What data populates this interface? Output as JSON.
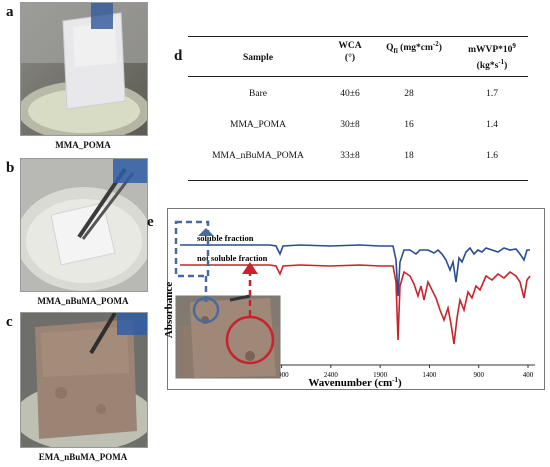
{
  "panels": {
    "a": {
      "letter": "a",
      "caption": "MMA_POMA"
    },
    "b": {
      "letter": "b",
      "caption": "MMA_nBuMA_POMA"
    },
    "c": {
      "letter": "c",
      "caption": "EMA_nBuMA_POMA"
    },
    "d": {
      "letter": "d"
    },
    "e": {
      "letter": "e"
    }
  },
  "table": {
    "headers": {
      "sample": "Sample",
      "wca": "WCA",
      "wca_unit": "(°)",
      "qfi": "Q",
      "qfi_sub": "fi",
      "qfi_unit": " (mg*cm",
      "qfi_sup": "-2",
      "qfi_close": ")",
      "mwvp": "mWVP*10",
      "mwvp_sup": "9",
      "mwvp_unit": "(kg*s",
      "mwvp_unit_sup": "-1",
      "mwvp_unit_close": ")"
    },
    "rows": [
      {
        "sample": "Bare",
        "wca": "40±6",
        "qfi": "28",
        "mwvp": "1.7"
      },
      {
        "sample": "MMA_POMA",
        "wca": "30±8",
        "qfi": "16",
        "mwvp": "1.4"
      },
      {
        "sample": "MMA_nBuMA_POMA",
        "wca": "33±8",
        "qfi": "18",
        "mwvp": "1.6"
      }
    ]
  },
  "spectrum": {
    "legend_soluble": "soluble fraction",
    "legend_not_soluble": "not soluble fraction",
    "ylabel": "Absorbance",
    "xlabel_main": "Wavenumber (cm",
    "xlabel_sup": "-1",
    "xlabel_close": ")",
    "ticks": [
      "3900",
      "3400",
      "2900",
      "2400",
      "1900",
      "1400",
      "900",
      "400"
    ],
    "colors": {
      "soluble": "#2a4d8f",
      "not_soluble": "#c8232c"
    }
  },
  "chart_data": {
    "type": "line",
    "x_reversed": true,
    "xlim": [
      3900,
      400
    ],
    "x_ticks": [
      3900,
      3400,
      2900,
      2400,
      1900,
      1400,
      900,
      400
    ],
    "xlabel": "Wavenumber (cm-1)",
    "ylabel": "Absorbance",
    "series": [
      {
        "name": "soluble fraction",
        "color": "#2a4d8f"
      },
      {
        "name": "not soluble fraction",
        "color": "#c8232c"
      }
    ]
  }
}
